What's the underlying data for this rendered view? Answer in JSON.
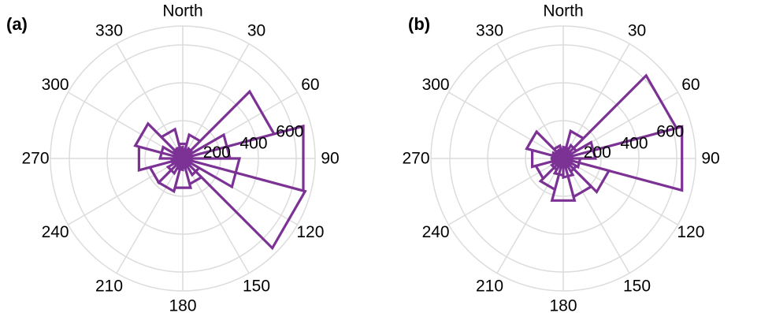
{
  "chart_data": [
    {
      "type": "rose",
      "panel_label": "(a)",
      "direction_labels": [
        "North",
        "30",
        "60",
        "90",
        "120",
        "150",
        "180",
        "210",
        "240",
        "270",
        "300",
        "330"
      ],
      "radial_ticks": [
        200,
        400,
        600
      ],
      "rmax": 700,
      "grid": true,
      "bin_width_deg": 30,
      "series_color": "#7b3294",
      "bins": [
        {
          "center": 0,
          "value": 80
        },
        {
          "center": 15,
          "value": 40
        },
        {
          "center": 30,
          "value": 130
        },
        {
          "center": 45,
          "value": 60
        },
        {
          "center": 60,
          "value": 500
        },
        {
          "center": 75,
          "value": 250
        },
        {
          "center": 90,
          "value": 660
        },
        {
          "center": 105,
          "value": 300
        },
        {
          "center": 120,
          "value": 670
        },
        {
          "center": 135,
          "value": 100
        },
        {
          "center": 150,
          "value": 140
        },
        {
          "center": 165,
          "value": 50
        },
        {
          "center": 180,
          "value": 160
        },
        {
          "center": 195,
          "value": 60
        },
        {
          "center": 210,
          "value": 180
        },
        {
          "center": 225,
          "value": 90
        },
        {
          "center": 240,
          "value": 180
        },
        {
          "center": 255,
          "value": 60
        },
        {
          "center": 270,
          "value": 240
        },
        {
          "center": 285,
          "value": 120
        },
        {
          "center": 300,
          "value": 260
        },
        {
          "center": 315,
          "value": 60
        },
        {
          "center": 330,
          "value": 160
        },
        {
          "center": 345,
          "value": 60
        }
      ]
    },
    {
      "type": "rose",
      "panel_label": "(b)",
      "direction_labels": [
        "North",
        "30",
        "60",
        "90",
        "120",
        "150",
        "180",
        "210",
        "240",
        "270",
        "300",
        "330"
      ],
      "radial_ticks": [
        200,
        400,
        600
      ],
      "rmax": 700,
      "grid": true,
      "bin_width_deg": 30,
      "series_color": "#7b3294",
      "bins": [
        {
          "center": 0,
          "value": 30
        },
        {
          "center": 15,
          "value": 60
        },
        {
          "center": 30,
          "value": 150
        },
        {
          "center": 45,
          "value": 80
        },
        {
          "center": 60,
          "value": 620
        },
        {
          "center": 75,
          "value": 170
        },
        {
          "center": 90,
          "value": 650
        },
        {
          "center": 105,
          "value": 90
        },
        {
          "center": 120,
          "value": 250
        },
        {
          "center": 135,
          "value": 80
        },
        {
          "center": 150,
          "value": 210
        },
        {
          "center": 165,
          "value": 100
        },
        {
          "center": 180,
          "value": 230
        },
        {
          "center": 195,
          "value": 90
        },
        {
          "center": 210,
          "value": 170
        },
        {
          "center": 225,
          "value": 70
        },
        {
          "center": 240,
          "value": 150
        },
        {
          "center": 255,
          "value": 60
        },
        {
          "center": 270,
          "value": 170
        },
        {
          "center": 285,
          "value": 60
        },
        {
          "center": 300,
          "value": 200
        },
        {
          "center": 315,
          "value": 50
        },
        {
          "center": 330,
          "value": 70
        },
        {
          "center": 345,
          "value": 40
        }
      ]
    }
  ]
}
